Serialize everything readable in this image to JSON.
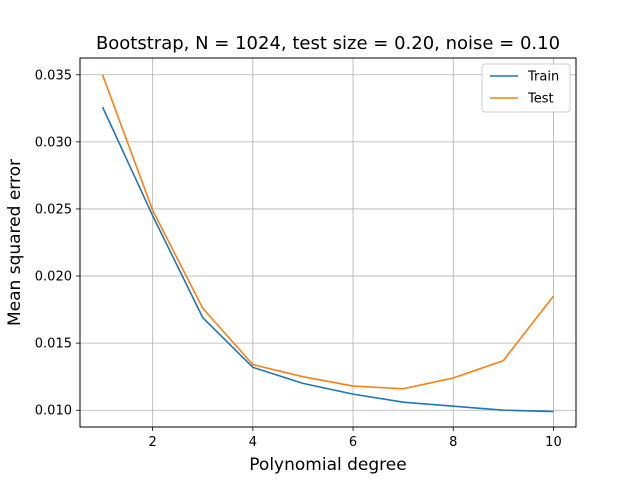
{
  "chart_data": {
    "type": "line",
    "title": "Bootstrap, N = 1024, test size = 0.20, noise = 0.10",
    "xlabel": "Polynomial degree",
    "ylabel": "Mean squared error",
    "xlim": [
      0.55,
      10.45
    ],
    "ylim": [
      0.00875,
      0.03625
    ],
    "x": [
      1,
      2,
      3,
      4,
      5,
      6,
      7,
      8,
      9,
      10
    ],
    "xticks": [
      2,
      4,
      6,
      8,
      10
    ],
    "xtick_labels": [
      "2",
      "4",
      "6",
      "8",
      "10"
    ],
    "yticks": [
      0.01,
      0.015,
      0.02,
      0.025,
      0.03,
      0.035
    ],
    "ytick_labels": [
      "0.010",
      "0.015",
      "0.020",
      "0.025",
      "0.030",
      "0.035"
    ],
    "grid": true,
    "legend_position": "top-right",
    "series": [
      {
        "name": "Train",
        "color": "#1f77b4",
        "values": [
          0.0326,
          0.0245,
          0.0169,
          0.0132,
          0.012,
          0.0112,
          0.0106,
          0.0103,
          0.01,
          0.0099
        ]
      },
      {
        "name": "Test",
        "color": "#ff7f0e",
        "values": [
          0.035,
          0.0249,
          0.0176,
          0.0134,
          0.0125,
          0.0118,
          0.0116,
          0.0124,
          0.0137,
          0.0185
        ]
      }
    ]
  }
}
